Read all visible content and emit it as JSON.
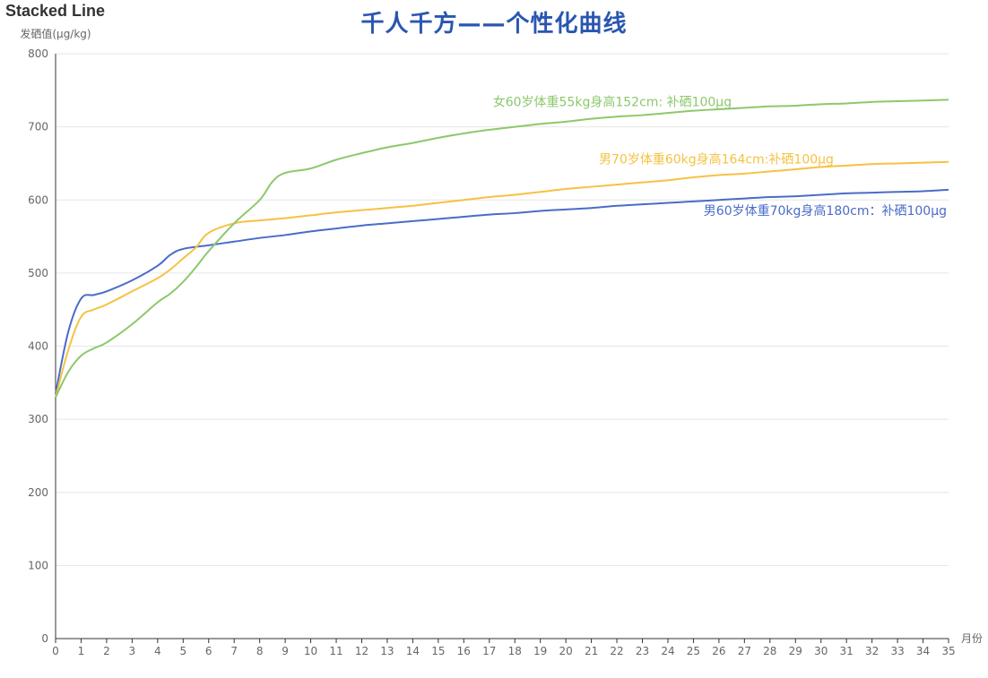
{
  "colors": {
    "axis": "#333333",
    "grid": "#e6e6e6",
    "tick_label": "#666666",
    "subtitle": "#2a56b0"
  },
  "chart_data": {
    "type": "line",
    "title": "Stacked Line",
    "subtitle": "千人千方——个性化曲线",
    "xlabel": "月份",
    "ylabel": "发硒值(μg/kg)",
    "xlim": [
      0,
      35
    ],
    "ylim": [
      0,
      800
    ],
    "xticks": [
      0,
      1,
      2,
      3,
      4,
      5,
      6,
      7,
      8,
      9,
      10,
      11,
      12,
      13,
      14,
      15,
      16,
      17,
      18,
      19,
      20,
      21,
      22,
      23,
      24,
      25,
      26,
      27,
      28,
      29,
      30,
      31,
      32,
      33,
      34,
      35
    ],
    "yticks": [
      0,
      100,
      200,
      300,
      400,
      500,
      600,
      700,
      800
    ],
    "grid": true,
    "series": [
      {
        "name": "男60岁体重70kg身高180cm：补硒100μg",
        "color": "#4a6cc8",
        "x": [
          0,
          0.5,
          1,
          1.5,
          2,
          3,
          4,
          4.5,
          5,
          6,
          7,
          8,
          9,
          10,
          11,
          12,
          13,
          14,
          15,
          16,
          17,
          18,
          19,
          20,
          21,
          22,
          23,
          24,
          25,
          26,
          27,
          28,
          29,
          30,
          31,
          32,
          33,
          34,
          35
        ],
        "y": [
          335,
          420,
          465,
          470,
          475,
          490,
          510,
          525,
          533,
          538,
          543,
          548,
          552,
          557,
          561,
          565,
          568,
          571,
          574,
          577,
          580,
          582,
          585,
          587,
          589,
          592,
          594,
          596,
          598,
          600,
          602,
          604,
          605,
          607,
          609,
          610,
          611,
          612,
          614
        ]
      },
      {
        "name": "男70岁体重60kg身高164cm:补硒100μg",
        "color": "#f5c242",
        "x": [
          0,
          0.5,
          1,
          1.5,
          2,
          3,
          4,
          4.5,
          5,
          5.5,
          6,
          7,
          8,
          9,
          10,
          11,
          12,
          13,
          14,
          15,
          16,
          17,
          18,
          19,
          20,
          21,
          22,
          23,
          24,
          25,
          26,
          27,
          28,
          29,
          30,
          31,
          32,
          33,
          34,
          35
        ],
        "y": [
          330,
          395,
          440,
          450,
          457,
          475,
          493,
          505,
          520,
          535,
          555,
          568,
          572,
          575,
          579,
          583,
          586,
          589,
          592,
          596,
          600,
          604,
          607,
          611,
          615,
          618,
          621,
          624,
          627,
          631,
          634,
          636,
          639,
          642,
          645,
          647,
          649,
          650,
          651,
          652
        ]
      },
      {
        "name": "女60岁体重55kg身高152cm: 补硒100μg",
        "color": "#8cc86c",
        "x": [
          0,
          0.5,
          1,
          1.5,
          2,
          3,
          4,
          4.5,
          5,
          5.5,
          6,
          7,
          8,
          8.5,
          9,
          10,
          11,
          12,
          13,
          14,
          15,
          16,
          17,
          18,
          19,
          20,
          21,
          22,
          23,
          24,
          25,
          26,
          27,
          28,
          29,
          30,
          31,
          32,
          33,
          34,
          35
        ],
        "y": [
          330,
          365,
          387,
          397,
          405,
          430,
          460,
          472,
          488,
          508,
          530,
          568,
          600,
          625,
          637,
          643,
          655,
          664,
          672,
          678,
          685,
          691,
          696,
          700,
          704,
          707,
          711,
          714,
          716,
          719,
          722,
          724,
          726,
          728,
          729,
          731,
          732,
          734,
          735,
          736,
          737
        ]
      }
    ]
  }
}
